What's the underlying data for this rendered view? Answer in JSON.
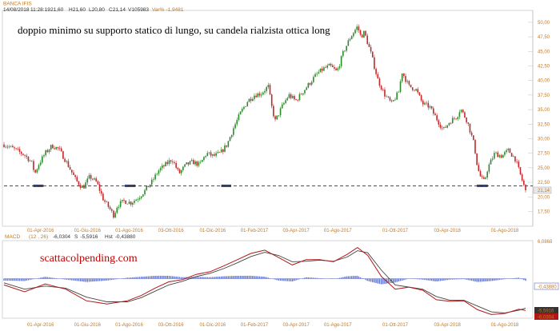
{
  "header": {
    "symbol": "BANCA IFIS",
    "date": "14/08/2018",
    "time": "11:28:19",
    "open": "21,60",
    "high": "21,60",
    "low": "20,80",
    "close": "21,14",
    "volume": "105983",
    "var_pct": "-1,9481"
  },
  "header_labels": {
    "h": "H",
    "l": "L",
    "c": "C",
    "v": "V",
    "var": "Var%"
  },
  "annotation": "doppio minimo su supporto statico di lungo, su candela rialzista ottica long",
  "watermark": "scattacolpending.com",
  "price_badge": "21,14",
  "macd_header": {
    "name": "MACD",
    "params": "(12 , 26)",
    "value": "-6,0304",
    "signal_label": "S",
    "signal": "-5,5916",
    "hist_label": "Hst",
    "hist": "-0,43880"
  },
  "macd_right": {
    "top": "6,0868",
    "hist_badge": "-0,43880",
    "sig_badge": "-5,5916",
    "macd_badge": "-6,0304"
  },
  "colors": {
    "bull": "#2c8a2c",
    "bear": "#c0282a",
    "support": "#2a3f8f",
    "macd_line": "#b01818",
    "signal_line": "#444444",
    "hist": "#5a6fd0",
    "axis_label": "#c07a2a"
  },
  "chart_data": [
    {
      "type": "candlestick",
      "title": "BANCA IFIS",
      "y_axis_ticks": [
        "50,00",
        "47,50",
        "45,00",
        "42,50",
        "40,00",
        "37,50",
        "35,00",
        "32,50",
        "30,00",
        "27,50",
        "25,00",
        "22,50",
        "20,00",
        "17,50"
      ],
      "ylim": [
        15.5,
        51.5
      ],
      "x_tick_labels": [
        "01-Apr-2016",
        "01-Giu-2016",
        "01-Ago-2016",
        "03-Ott-2016",
        "01-Dic-2016",
        "01-Feb-2017",
        "03-Apr-2017",
        "01-Ago-2017",
        "01-Ott-2017",
        "03-Apr-2018",
        "01-Ago-2018"
      ],
      "support_level": 21.9,
      "last_close": 21.14,
      "close_path": [
        [
          0,
          29.0
        ],
        [
          3,
          28.2
        ],
        [
          6,
          27.2
        ],
        [
          8,
          26.0
        ],
        [
          9,
          24.0
        ],
        [
          10,
          25.5
        ],
        [
          12,
          27.5
        ],
        [
          14,
          28.8
        ],
        [
          16,
          28.2
        ],
        [
          18,
          26.2
        ],
        [
          21,
          22.8
        ],
        [
          23,
          21.5
        ],
        [
          25,
          23.5
        ],
        [
          27,
          22.5
        ],
        [
          29,
          19.5
        ],
        [
          31,
          17.8
        ],
        [
          32,
          16.8
        ],
        [
          33,
          18.5
        ],
        [
          35,
          19.3
        ],
        [
          37,
          19.0
        ],
        [
          39,
          19.8
        ],
        [
          41,
          21.0
        ],
        [
          42,
          21.8
        ],
        [
          43,
          22.5
        ],
        [
          45,
          24.5
        ],
        [
          47,
          25.5
        ],
        [
          49,
          26.5
        ],
        [
          51,
          24.0
        ],
        [
          53,
          25.5
        ],
        [
          55,
          26.0
        ],
        [
          57,
          25.5
        ],
        [
          59,
          27.5
        ],
        [
          61,
          27.0
        ],
        [
          63,
          27.5
        ],
        [
          65,
          29.0
        ],
        [
          67,
          32.0
        ],
        [
          69,
          34.5
        ],
        [
          71,
          36.5
        ],
        [
          73,
          37.5
        ],
        [
          75,
          37.8
        ],
        [
          77,
          39.0
        ],
        [
          78,
          35.5
        ],
        [
          79,
          33.0
        ],
        [
          81,
          35.5
        ],
        [
          83,
          37.5
        ],
        [
          85,
          36.5
        ],
        [
          87,
          38.0
        ],
        [
          89,
          39.5
        ],
        [
          91,
          41.0
        ],
        [
          93,
          42.0
        ],
        [
          95,
          42.5
        ],
        [
          97,
          41.5
        ],
        [
          99,
          45.0
        ],
        [
          101,
          47.5
        ],
        [
          103,
          49.3
        ],
        [
          104,
          47.5
        ],
        [
          105,
          48.3
        ],
        [
          107,
          44.5
        ],
        [
          109,
          40.0
        ],
        [
          111,
          37.5
        ],
        [
          113,
          36.0
        ],
        [
          115,
          38.0
        ],
        [
          116,
          41.5
        ],
        [
          118,
          39.0
        ],
        [
          120,
          38.5
        ],
        [
          122,
          36.0
        ],
        [
          124,
          35.5
        ],
        [
          126,
          33.5
        ],
        [
          128,
          31.5
        ],
        [
          130,
          33.0
        ],
        [
          132,
          33.8
        ],
        [
          133,
          35.2
        ],
        [
          135,
          33.0
        ],
        [
          137,
          29.0
        ],
        [
          138,
          25.0
        ],
        [
          139,
          23.2
        ],
        [
          140,
          22.6
        ],
        [
          141,
          25.0
        ],
        [
          143,
          27.5
        ],
        [
          145,
          27.0
        ],
        [
          147,
          28.0
        ],
        [
          149,
          26.5
        ],
        [
          151,
          22.8
        ],
        [
          152,
          21.14
        ]
      ]
    },
    {
      "type": "line",
      "title": "MACD (12 , 26)",
      "ylim": [
        -7.2,
        6.6
      ],
      "macd": [
        [
          0,
          -1.2
        ],
        [
          6,
          -2.5
        ],
        [
          12,
          -1.0
        ],
        [
          18,
          -2.0
        ],
        [
          24,
          -4.2
        ],
        [
          30,
          -4.8
        ],
        [
          36,
          -4.2
        ],
        [
          40,
          -3.2
        ],
        [
          44,
          -1.8
        ],
        [
          48,
          -0.6
        ],
        [
          52,
          -0.2
        ],
        [
          56,
          0.8
        ],
        [
          60,
          1.3
        ],
        [
          64,
          2.4
        ],
        [
          68,
          3.6
        ],
        [
          72,
          4.8
        ],
        [
          76,
          5.4
        ],
        [
          80,
          4.0
        ],
        [
          84,
          2.6
        ],
        [
          88,
          3.6
        ],
        [
          92,
          3.6
        ],
        [
          96,
          3.2
        ],
        [
          100,
          4.6
        ],
        [
          103,
          5.9
        ],
        [
          106,
          4.4
        ],
        [
          110,
          0.4
        ],
        [
          114,
          -2.0
        ],
        [
          118,
          -1.6
        ],
        [
          122,
          -2.2
        ],
        [
          126,
          -4.0
        ],
        [
          130,
          -4.3
        ],
        [
          134,
          -4.2
        ],
        [
          138,
          -5.9
        ],
        [
          142,
          -6.8
        ],
        [
          146,
          -6.6
        ],
        [
          150,
          -5.8
        ],
        [
          152,
          -6.03
        ]
      ],
      "signal": [
        [
          0,
          -0.8
        ],
        [
          6,
          -2.0
        ],
        [
          12,
          -1.4
        ],
        [
          18,
          -1.8
        ],
        [
          24,
          -3.5
        ],
        [
          30,
          -4.4
        ],
        [
          36,
          -4.4
        ],
        [
          40,
          -3.6
        ],
        [
          44,
          -2.4
        ],
        [
          48,
          -1.2
        ],
        [
          52,
          -0.5
        ],
        [
          56,
          0.4
        ],
        [
          60,
          1.0
        ],
        [
          64,
          1.9
        ],
        [
          68,
          3.0
        ],
        [
          72,
          4.2
        ],
        [
          76,
          5.0
        ],
        [
          80,
          4.4
        ],
        [
          84,
          3.2
        ],
        [
          88,
          3.3
        ],
        [
          92,
          3.5
        ],
        [
          96,
          3.3
        ],
        [
          100,
          4.1
        ],
        [
          103,
          5.3
        ],
        [
          106,
          4.9
        ],
        [
          110,
          1.6
        ],
        [
          114,
          -1.2
        ],
        [
          118,
          -1.6
        ],
        [
          122,
          -2.0
        ],
        [
          126,
          -3.4
        ],
        [
          130,
          -4.1
        ],
        [
          134,
          -4.1
        ],
        [
          138,
          -5.2
        ],
        [
          142,
          -6.3
        ],
        [
          146,
          -6.5
        ],
        [
          150,
          -6.0
        ],
        [
          152,
          -5.59
        ]
      ],
      "histogram_last": -0.4388,
      "x_tick_labels": [
        "01-Apr-2016",
        "01-Giu-2016",
        "01-Ago-2016",
        "03-Ott-2016",
        "01-Dic-2016",
        "01-Feb-2017",
        "03-Apr-2017",
        "01-Ago-2017",
        "01-Ott-2017",
        "03-Apr-2018",
        "01-Ago-2018"
      ]
    }
  ]
}
